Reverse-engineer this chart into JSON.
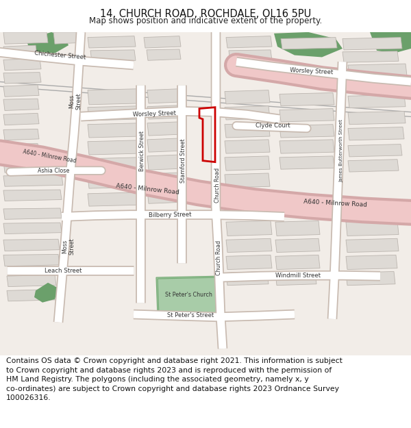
{
  "title": "14, CHURCH ROAD, ROCHDALE, OL16 5PU",
  "subtitle": "Map shows position and indicative extent of the property.",
  "footer_line1": "Contains OS data © Crown copyright and database right 2021. This information is subject",
  "footer_line2": "to Crown copyright and database rights 2023 and is reproduced with the permission of",
  "footer_line3": "HM Land Registry. The polygons (including the associated geometry, namely x, y",
  "footer_line4": "co-ordinates) are subject to Crown copyright and database rights 2023 Ordnance Survey",
  "footer_line5": "100026316.",
  "map_bg": "#f2ede8",
  "road_major_color": "#f0c8c8",
  "road_major_outline": "#d4a8a8",
  "road_minor_color": "#ffffff",
  "road_minor_outline": "#c8bab0",
  "building_color": "#dedad5",
  "building_outline": "#bbb5af",
  "green_dark": "#6ba06b",
  "green_light": "#90c090",
  "highlight_color": "#cc0000",
  "text_color": "#2a2a2a",
  "label_color": "#333333"
}
